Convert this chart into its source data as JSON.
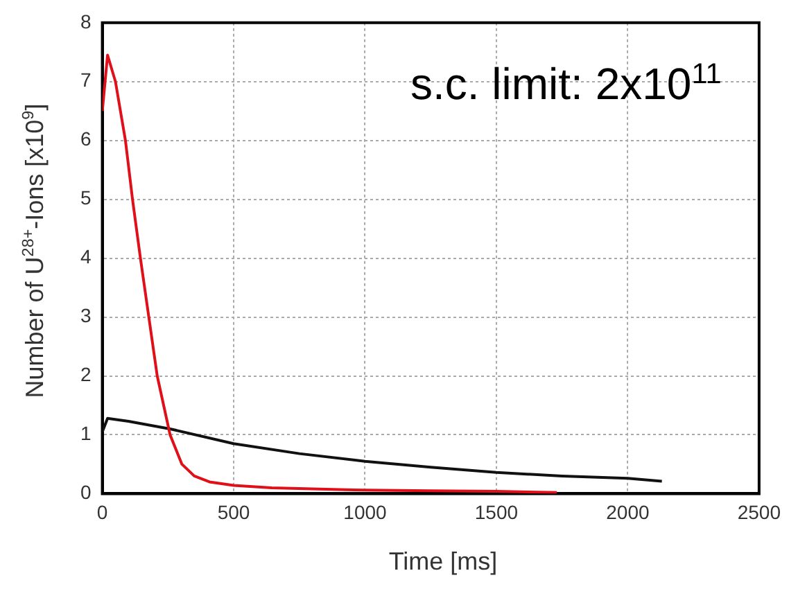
{
  "chart_data": {
    "type": "line",
    "xlabel": "Time [ms]",
    "ylabel": "Number of U$^{28+}$-Ions [x10$^{9}$]",
    "annotations": [
      "s.c. limit: 2x10$^{11}$"
    ],
    "xlim": [
      0,
      2500
    ],
    "xticks": [
      0,
      500,
      1000,
      1500,
      2000,
      2500
    ],
    "ylim": [
      0,
      8
    ],
    "yticks": [
      0,
      1,
      2,
      3,
      4,
      5,
      6,
      7,
      8
    ],
    "grid": true,
    "legend": false,
    "marker": "none",
    "line_style": "solid",
    "series": [
      {
        "color": "#e0101a",
        "x": [
          0,
          20,
          50,
          88,
          115,
          145,
          177,
          209,
          258,
          303,
          350,
          408,
          500,
          645,
          800,
          1000,
          1250,
          1500,
          1730
        ],
        "values": [
          6.5,
          7.45,
          7.0,
          6,
          5,
          4,
          3,
          2,
          1,
          0.5,
          0.3,
          0.2,
          0.14,
          0.1,
          0.08,
          0.06,
          0.05,
          0.04,
          0.02
        ]
      },
      {
        "color": "#111111",
        "x": [
          0,
          20,
          100,
          258,
          500,
          750,
          1000,
          1250,
          1500,
          1750,
          2000,
          2130
        ],
        "values": [
          1.05,
          1.28,
          1.23,
          1.1,
          0.85,
          0.68,
          0.55,
          0.45,
          0.36,
          0.3,
          0.26,
          0.21
        ]
      }
    ]
  }
}
